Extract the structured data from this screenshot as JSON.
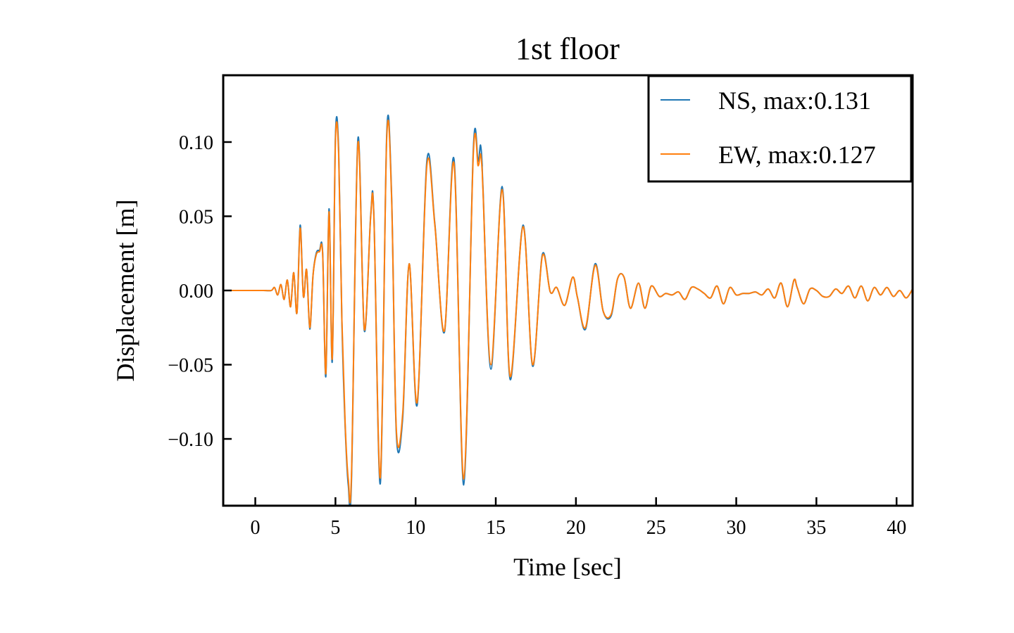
{
  "chart_data": {
    "type": "line",
    "title": "1st floor",
    "xlabel": "Time [sec]",
    "ylabel": "Displacement [m]",
    "xlim": [
      -2,
      41
    ],
    "ylim": [
      -0.145,
      0.145
    ],
    "xticks": [
      0,
      5,
      10,
      15,
      20,
      25,
      30,
      35,
      40
    ],
    "xtick_labels": [
      "0",
      "5",
      "10",
      "15",
      "20",
      "25",
      "30",
      "35",
      "40"
    ],
    "yticks": [
      0.1,
      0.05,
      0.0,
      -0.05,
      -0.1
    ],
    "ytick_labels": [
      "0.10",
      "0.05",
      "0.00",
      "−0.05",
      "−0.10"
    ],
    "grid": false,
    "legend_position": "top-right",
    "series": [
      {
        "name": "NS, max:0.131",
        "color": "#1f77b4",
        "x": [
          -2,
          0,
          0.5,
          1.0,
          1.2,
          1.4,
          1.6,
          1.8,
          2.0,
          2.2,
          2.4,
          2.6,
          2.8,
          3.0,
          3.2,
          3.4,
          3.6,
          3.8,
          4.0,
          4.2,
          4.4,
          4.6,
          4.8,
          5.0,
          5.2,
          5.4,
          5.6,
          5.8,
          6.0,
          6.4,
          6.8,
          7.2,
          7.4,
          7.8,
          8.2,
          8.5,
          8.8,
          9.2,
          9.6,
          10.1,
          10.7,
          11.2,
          11.8,
          12.4,
          13.0,
          13.6,
          13.9,
          14.05,
          14.15,
          14.2,
          14.7,
          15.4,
          15.9,
          16.7,
          17.3,
          17.9,
          18.4,
          18.8,
          19.3,
          19.8,
          20.1,
          20.6,
          21.2,
          21.7,
          22.2,
          22.6,
          23.0,
          23.4,
          23.9,
          24.3,
          24.7,
          25.2,
          25.6,
          26.0,
          26.4,
          26.8,
          27.2,
          27.6,
          28.0,
          28.4,
          28.8,
          29.2,
          29.6,
          30.0,
          30.4,
          30.8,
          31.2,
          31.6,
          32.0,
          32.4,
          32.8,
          33.2,
          33.6,
          33.8,
          34.2,
          34.6,
          35.0,
          35.4,
          35.8,
          36.2,
          36.6,
          37.0,
          37.4,
          37.8,
          38.2,
          38.6,
          39.0,
          39.4,
          39.8,
          40.2,
          40.6,
          41.0
        ],
        "y": [
          0.0,
          0.0,
          0.0,
          0.0,
          0.002,
          -0.003,
          0.004,
          -0.006,
          0.007,
          -0.011,
          0.012,
          -0.015,
          0.044,
          -0.004,
          0.014,
          -0.026,
          0.01,
          0.025,
          0.027,
          0.026,
          -0.058,
          0.055,
          -0.048,
          0.104,
          0.095,
          -0.02,
          -0.09,
          -0.131,
          -0.128,
          0.102,
          -0.027,
          0.051,
          0.05,
          -0.13,
          0.106,
          0.065,
          -0.097,
          -0.085,
          0.018,
          -0.077,
          0.087,
          0.045,
          -0.028,
          0.088,
          -0.131,
          0.095,
          0.087,
          0.098,
          0.085,
          0.07,
          -0.053,
          0.07,
          -0.06,
          0.044,
          -0.051,
          0.024,
          -0.001,
          0.002,
          -0.01,
          0.009,
          -0.005,
          -0.026,
          0.018,
          -0.014,
          -0.017,
          0.008,
          0.009,
          -0.012,
          0.005,
          -0.012,
          0.003,
          -0.004,
          -0.002,
          -0.003,
          -0.001,
          -0.006,
          0.002,
          0.001,
          -0.002,
          -0.005,
          0.003,
          -0.009,
          0.002,
          -0.003,
          -0.002,
          -0.002,
          -0.001,
          -0.003,
          0.001,
          -0.005,
          0.005,
          -0.011,
          0.007,
          0.002,
          -0.009,
          0.001,
          0.0,
          -0.004,
          -0.004,
          0.001,
          -0.002,
          0.003,
          -0.005,
          0.003,
          -0.007,
          0.002,
          -0.003,
          0.002,
          -0.004,
          0.0,
          -0.005,
          0.001
        ]
      },
      {
        "name": "EW, max:0.127",
        "color": "#ff7f0e",
        "x": [
          -2,
          0,
          0.5,
          1.0,
          1.2,
          1.4,
          1.6,
          1.8,
          2.0,
          2.2,
          2.4,
          2.6,
          2.8,
          3.0,
          3.2,
          3.4,
          3.6,
          3.8,
          4.0,
          4.2,
          4.4,
          4.6,
          4.8,
          5.0,
          5.2,
          5.4,
          5.6,
          5.8,
          6.0,
          6.4,
          6.8,
          7.2,
          7.4,
          7.8,
          8.2,
          8.5,
          8.8,
          9.2,
          9.6,
          10.1,
          10.7,
          11.2,
          11.8,
          12.4,
          13.0,
          13.6,
          13.9,
          14.05,
          14.15,
          14.2,
          14.7,
          15.4,
          15.9,
          16.7,
          17.3,
          17.9,
          18.4,
          18.8,
          19.3,
          19.8,
          20.1,
          20.6,
          21.2,
          21.7,
          22.2,
          22.6,
          23.0,
          23.4,
          23.9,
          24.3,
          24.7,
          25.2,
          25.6,
          26.0,
          26.4,
          26.8,
          27.2,
          27.6,
          28.0,
          28.4,
          28.8,
          29.2,
          29.6,
          30.0,
          30.4,
          30.8,
          31.2,
          31.6,
          32.0,
          32.4,
          32.8,
          33.2,
          33.6,
          33.8,
          34.2,
          34.6,
          35.0,
          35.4,
          35.8,
          36.2,
          36.6,
          37.0,
          37.4,
          37.8,
          38.2,
          38.6,
          39.0,
          39.4,
          39.8,
          40.2,
          40.6,
          41.0
        ],
        "y": [
          0.0,
          0.0,
          0.0,
          0.0,
          0.002,
          -0.003,
          0.004,
          -0.006,
          0.007,
          -0.011,
          0.012,
          -0.015,
          0.042,
          -0.004,
          0.014,
          -0.025,
          0.01,
          0.024,
          0.026,
          0.025,
          -0.056,
          0.053,
          -0.046,
          0.101,
          0.092,
          -0.019,
          -0.088,
          -0.127,
          -0.124,
          0.099,
          -0.026,
          0.05,
          0.049,
          -0.126,
          0.103,
          0.063,
          -0.094,
          -0.082,
          0.018,
          -0.075,
          0.084,
          0.044,
          -0.027,
          0.085,
          -0.127,
          0.092,
          0.084,
          0.092,
          0.081,
          0.068,
          -0.05,
          0.068,
          -0.058,
          0.043,
          -0.05,
          0.023,
          -0.001,
          0.002,
          -0.01,
          0.009,
          -0.005,
          -0.025,
          0.017,
          -0.014,
          -0.016,
          0.008,
          0.009,
          -0.012,
          0.005,
          -0.012,
          0.003,
          -0.004,
          -0.002,
          -0.003,
          -0.001,
          -0.006,
          0.002,
          0.001,
          -0.002,
          -0.005,
          0.003,
          -0.009,
          0.002,
          -0.003,
          -0.002,
          -0.002,
          -0.001,
          -0.003,
          0.001,
          -0.005,
          0.005,
          -0.011,
          0.007,
          0.002,
          -0.009,
          0.001,
          0.0,
          -0.004,
          -0.004,
          0.001,
          -0.002,
          0.003,
          -0.005,
          0.003,
          -0.007,
          0.002,
          -0.003,
          0.002,
          -0.004,
          0.0,
          -0.005,
          0.001
        ]
      }
    ]
  }
}
